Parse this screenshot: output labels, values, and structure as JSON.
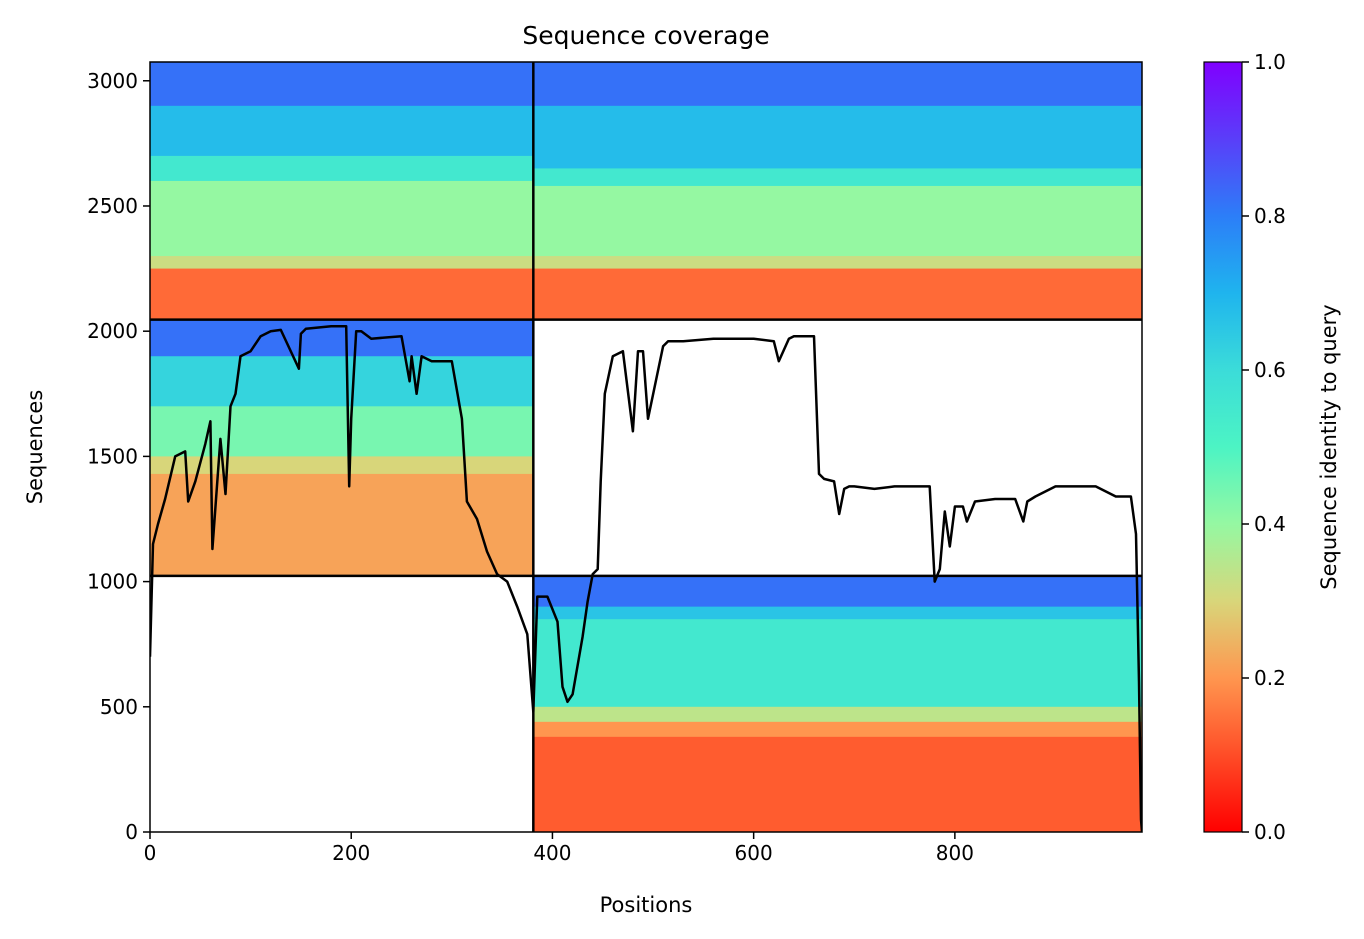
{
  "chart_data": {
    "type": "heatmap",
    "title": "Sequence coverage",
    "xlabel": "Positions",
    "ylabel": "Sequences",
    "xlim": [
      0,
      986
    ],
    "ylim": [
      0,
      3075
    ],
    "x_ticks": [
      0,
      200,
      400,
      600,
      800
    ],
    "y_ticks": [
      0,
      500,
      1000,
      1500,
      2000,
      2500,
      3000
    ],
    "colorbar": {
      "label": "Sequence identity to query",
      "range": [
        0.0,
        1.0
      ],
      "ticks": [
        "0.0",
        "0.2",
        "0.4",
        "0.6",
        "0.8",
        "1.0"
      ],
      "colormap": "rainbow_r"
    },
    "segment_boundaries": {
      "x": 381,
      "y": [
        1023,
        2046
      ]
    },
    "identity_bands": [
      {
        "x0": 0,
        "x1": 381,
        "y0": 2046,
        "y1": 3075,
        "bands": [
          [
            3075,
            2900,
            0.82
          ],
          [
            2900,
            2700,
            0.68
          ],
          [
            2700,
            2600,
            0.55
          ],
          [
            2600,
            2300,
            0.4
          ],
          [
            2300,
            2250,
            0.32
          ],
          [
            2250,
            2046,
            0.14
          ]
        ]
      },
      {
        "x0": 381,
        "x1": 986,
        "y0": 2046,
        "y1": 3075,
        "bands": [
          [
            3075,
            2900,
            0.82
          ],
          [
            2900,
            2650,
            0.68
          ],
          [
            2650,
            2580,
            0.55
          ],
          [
            2580,
            2300,
            0.4
          ],
          [
            2300,
            2250,
            0.32
          ],
          [
            2250,
            2046,
            0.14
          ]
        ]
      },
      {
        "x0": 0,
        "x1": 381,
        "y0": 1023,
        "y1": 2046,
        "bands": [
          [
            2046,
            1900,
            0.82
          ],
          [
            1900,
            1700,
            0.62
          ],
          [
            1700,
            1500,
            0.44
          ],
          [
            1500,
            1430,
            0.3
          ],
          [
            1430,
            1023,
            0.22
          ]
        ]
      },
      {
        "x0": 381,
        "x1": 986,
        "y0": 0,
        "y1": 1023,
        "bands": [
          [
            1023,
            900,
            0.82
          ],
          [
            900,
            850,
            0.66
          ],
          [
            850,
            500,
            0.55
          ],
          [
            500,
            440,
            0.34
          ],
          [
            440,
            380,
            0.2
          ],
          [
            380,
            0,
            0.12
          ]
        ]
      }
    ],
    "coverage_line": {
      "color": "#000000",
      "x": [
        0,
        3,
        8,
        15,
        25,
        35,
        38,
        45,
        55,
        60,
        62,
        70,
        75,
        80,
        85,
        90,
        100,
        110,
        120,
        130,
        148,
        150,
        155,
        180,
        195,
        198,
        200,
        205,
        210,
        220,
        250,
        258,
        260,
        265,
        270,
        280,
        300,
        310,
        315,
        325,
        335,
        345,
        355,
        365,
        375,
        381,
        385,
        395,
        405,
        410,
        415,
        420,
        430,
        435,
        440,
        445,
        448,
        452,
        460,
        470,
        480,
        485,
        490,
        495,
        510,
        515,
        520,
        530,
        560,
        600,
        620,
        625,
        635,
        640,
        660,
        665,
        670,
        680,
        685,
        690,
        695,
        700,
        720,
        740,
        760,
        775,
        780,
        785,
        790,
        795,
        800,
        808,
        812,
        820,
        840,
        860,
        868,
        872,
        880,
        900,
        920,
        940,
        960,
        975,
        980,
        983,
        985,
        986
      ],
      "y": [
        700,
        1150,
        1230,
        1330,
        1500,
        1520,
        1320,
        1400,
        1550,
        1640,
        1130,
        1570,
        1350,
        1700,
        1750,
        1900,
        1920,
        1980,
        2000,
        2005,
        1850,
        1990,
        2010,
        2020,
        2020,
        1380,
        1650,
        2000,
        2000,
        1970,
        1980,
        1800,
        1900,
        1750,
        1900,
        1880,
        1880,
        1650,
        1320,
        1250,
        1120,
        1030,
        1000,
        900,
        790,
        480,
        940,
        940,
        840,
        580,
        520,
        550,
        780,
        920,
        1030,
        1050,
        1400,
        1750,
        1900,
        1920,
        1600,
        1920,
        1920,
        1650,
        1940,
        1960,
        1960,
        1960,
        1970,
        1970,
        1960,
        1880,
        1970,
        1980,
        1980,
        1430,
        1410,
        1400,
        1270,
        1370,
        1380,
        1380,
        1370,
        1380,
        1380,
        1380,
        1000,
        1050,
        1280,
        1140,
        1300,
        1300,
        1240,
        1320,
        1330,
        1330,
        1240,
        1320,
        1340,
        1380,
        1380,
        1380,
        1340,
        1340,
        1190,
        600,
        50,
        0
      ]
    }
  }
}
